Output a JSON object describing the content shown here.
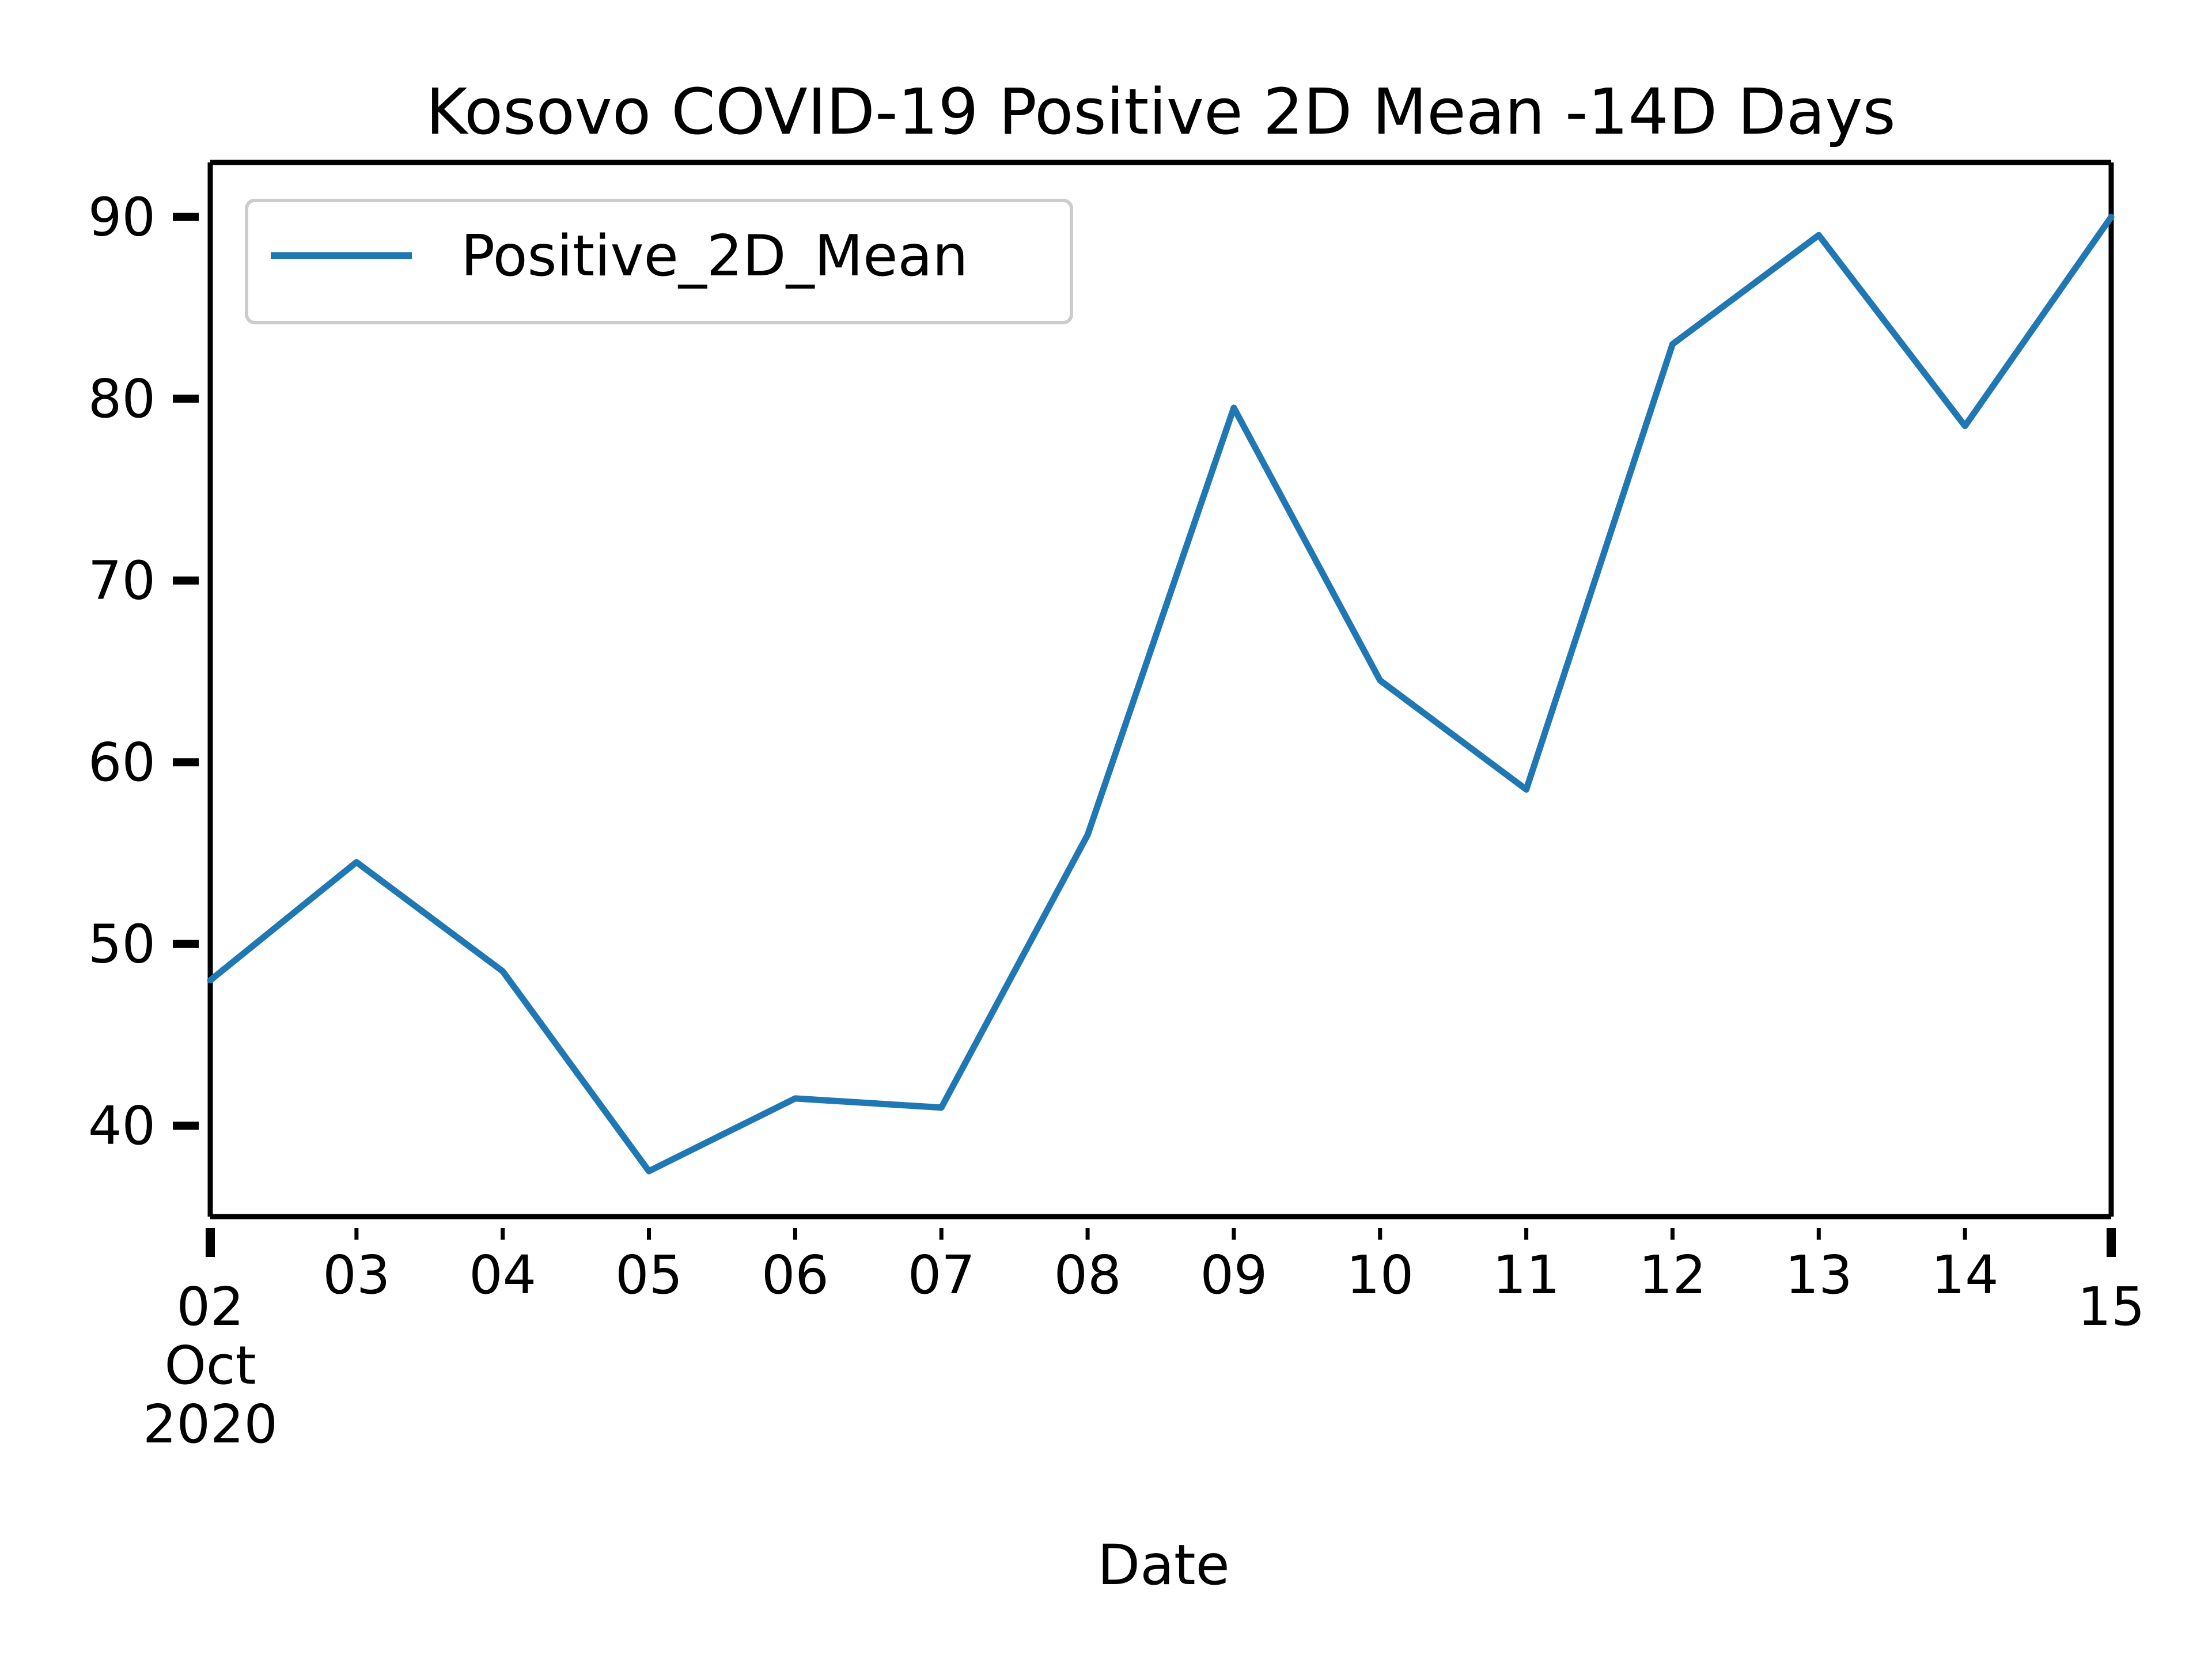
{
  "chart_data": {
    "type": "line",
    "title": "Kosovo COVID-19 Positive 2D Mean -14D Days",
    "xlabel": "Date",
    "ylabel": "",
    "x": [
      "2020-10-02",
      "2020-10-03",
      "2020-10-04",
      "2020-10-05",
      "2020-10-06",
      "2020-10-07",
      "2020-10-08",
      "2020-10-09",
      "2020-10-10",
      "2020-10-11",
      "2020-10-12",
      "2020-10-13",
      "2020-10-14",
      "2020-10-15"
    ],
    "series": [
      {
        "name": "Positive_2D_Mean",
        "color": "#1f77b4",
        "values": [
          48,
          54.5,
          48.5,
          37.5,
          41.5,
          41,
          56,
          79.5,
          64.5,
          58.5,
          83,
          89,
          78.5,
          90
        ]
      }
    ],
    "xlim": [
      "2020-10-02",
      "2020-10-15"
    ],
    "ylim": [
      35,
      93
    ],
    "yticks": [
      40,
      50,
      60,
      70,
      80,
      90
    ],
    "xtick_labels": [
      "02\nOct\n2020",
      "03",
      "04",
      "05",
      "06",
      "07",
      "08",
      "09",
      "10",
      "11",
      "12",
      "13",
      "14",
      "15"
    ],
    "grid": false,
    "legend_position": "top-left"
  }
}
